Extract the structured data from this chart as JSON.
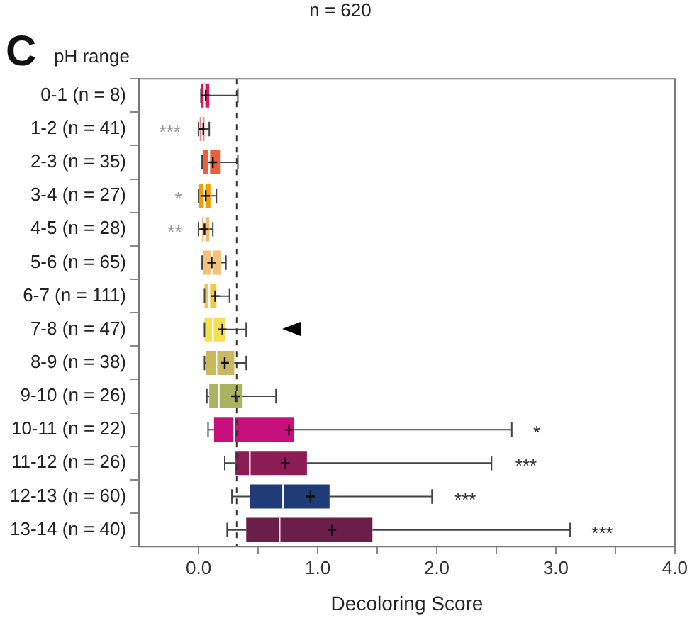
{
  "chart_data": {
    "type": "box",
    "title": "n = 620",
    "ylabel": "pH range",
    "xlabel": "Decoloring Score",
    "orientation": "horizontal",
    "categories": [
      "0-1 (n = 8)",
      "1-2 (n = 41)",
      "2-3 (n = 35)",
      "3-4 (n = 27)",
      "4-5 (n = 28)",
      "5-6 (n = 65)",
      "6-7 (n = 111)",
      "7-8 (n = 47)",
      "8-9 (n = 38)",
      "9-10 (n = 26)",
      "10-11 (n = 22)",
      "11-12 (n = 26)",
      "12-13 (n = 60)",
      "13-14 (n = 40)"
    ],
    "colors": [
      "#d81b60",
      "#f08080",
      "#e8603c",
      "#f0a000",
      "#f2b86c",
      "#f2c27a",
      "#f0c850",
      "#f2e050",
      "#c8b860",
      "#a8b460",
      "#c8107c",
      "#8c1c54",
      "#1f3c78",
      "#6b1e48"
    ],
    "boxes": [
      {
        "low": 0.02,
        "q1": 0.02,
        "median": 0.05,
        "q3": 0.09,
        "high": 0.33,
        "mean": 0.06
      },
      {
        "low": 0.0,
        "q1": 0.01,
        "median": 0.03,
        "q3": 0.05,
        "high": 0.09,
        "mean": 0.04
      },
      {
        "low": 0.03,
        "q1": 0.04,
        "median": 0.09,
        "q3": 0.18,
        "high": 0.33,
        "mean": 0.12
      },
      {
        "low": 0.0,
        "q1": 0.0,
        "median": 0.05,
        "q3": 0.1,
        "high": 0.15,
        "mean": 0.06
      },
      {
        "low": 0.0,
        "q1": 0.03,
        "median": 0.05,
        "q3": 0.09,
        "high": 0.12,
        "mean": 0.05
      },
      {
        "low": 0.03,
        "q1": 0.04,
        "median": 0.11,
        "q3": 0.19,
        "high": 0.23,
        "mean": 0.11
      },
      {
        "low": 0.05,
        "q1": 0.05,
        "median": 0.09,
        "q3": 0.15,
        "high": 0.26,
        "mean": 0.14
      },
      {
        "low": 0.05,
        "q1": 0.05,
        "median": 0.12,
        "q3": 0.22,
        "high": 0.4,
        "mean": 0.2
      },
      {
        "low": 0.05,
        "q1": 0.06,
        "median": 0.15,
        "q3": 0.3,
        "high": 0.4,
        "mean": 0.22
      },
      {
        "low": 0.07,
        "q1": 0.09,
        "median": 0.17,
        "q3": 0.37,
        "high": 0.65,
        "mean": 0.31
      },
      {
        "low": 0.08,
        "q1": 0.13,
        "median": 0.3,
        "q3": 0.8,
        "high": 2.63,
        "mean": 0.76
      },
      {
        "low": 0.22,
        "q1": 0.31,
        "median": 0.43,
        "q3": 0.91,
        "high": 2.46,
        "mean": 0.73
      },
      {
        "low": 0.28,
        "q1": 0.43,
        "median": 0.71,
        "q3": 1.1,
        "high": 1.96,
        "mean": 0.94
      },
      {
        "low": 0.24,
        "q1": 0.4,
        "median": 0.68,
        "q3": 1.46,
        "high": 3.12,
        "mean": 1.12
      }
    ],
    "xlim": [
      -0.5,
      4.0
    ],
    "xticks": [
      {
        "value": 0,
        "label": "0.0"
      },
      {
        "value": 0.5,
        "label": null
      },
      {
        "value": 1,
        "label": "1.0"
      },
      {
        "value": 1.5,
        "label": null
      },
      {
        "value": 2,
        "label": "2.0"
      },
      {
        "value": 2.5,
        "label": null
      },
      {
        "value": 3,
        "label": "3.0"
      },
      {
        "value": 3.5,
        "label": null
      },
      {
        "value": 4,
        "label": "4.0"
      }
    ],
    "ref_lines": [
      {
        "axis": "x",
        "value": 0.32,
        "line_style": "dashed",
        "color": "#333333"
      }
    ],
    "annotations": [
      "C",
      "***",
      "*",
      "**",
      "*",
      "***",
      "***",
      "***"
    ],
    "grid": false,
    "legend": false
  }
}
